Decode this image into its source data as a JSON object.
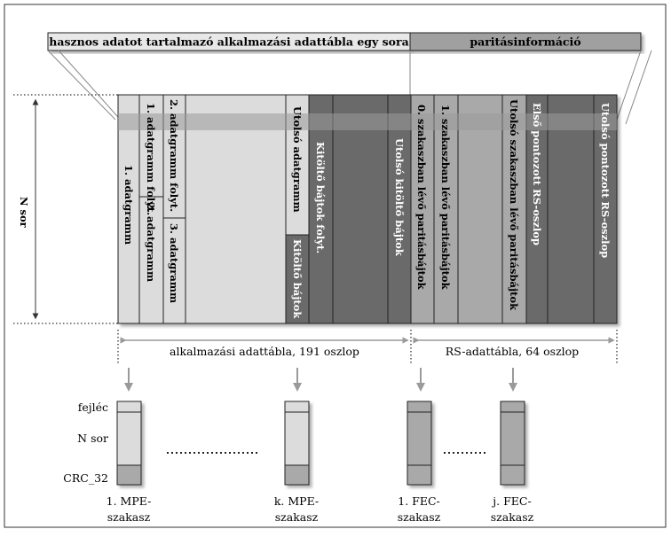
{
  "header": {
    "left": "hasznos adatot tartalmazó alkalmazási adattábla egy sora",
    "right": "paritásinformáció"
  },
  "rows_label": "N sor",
  "columns": {
    "c1": "1. adatgramm",
    "c2a": "1. adatgramm folyt.",
    "c2b": "2. adatgramm",
    "c3a": "2. adatgramm folyt.",
    "c3b": "3. adatgramm",
    "c_last_a": "Utolsó adatgramm",
    "c_last_b": "Kitöltő bájtok",
    "c_pad_cont": "Kitöltő bájtok folyt.",
    "c_pad_last": "Utolsó kitöltő bájtok",
    "p0": "0. szakaszban lévő paritásbájtok",
    "p1": "1. szakaszban lévő paritásbájtok",
    "p_last": "Utolsó szakaszban lévő paritásbájtok",
    "rs_first": "Első pontozott RS-oszlop",
    "rs_last": "Utolsó pontozott RS-oszlop"
  },
  "dimensions": {
    "app_table": "alkalmazási adattábla, 191 oszlop",
    "rs_table": "RS-adattábla, 64 oszlop"
  },
  "sections": {
    "header_label": "fejléc",
    "rows_label": "N sor",
    "crc_label": "CRC_32",
    "mpe1_line1": "1. MPE-",
    "mpe1_line2": "szakasz",
    "mpek_line1": "k. MPE-",
    "mpek_line2": "szakasz",
    "fec1_line1": "1. FEC-",
    "fec1_line2": "szakasz",
    "fecj_line1": "j. FEC-",
    "fecj_line2": "szakasz"
  },
  "colors": {
    "light": "#dcdcdc",
    "medium": "#a9a9a9",
    "dark": "#6b6b6b",
    "header_light": "#e8e8e8",
    "header_dark": "#a0a0a0",
    "arrow": "#9a9a9a"
  }
}
